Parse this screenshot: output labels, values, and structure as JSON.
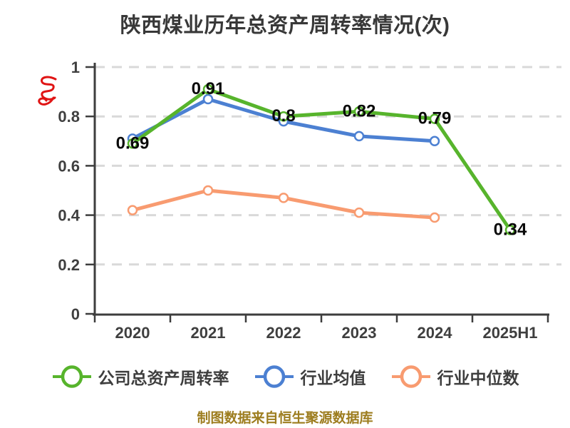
{
  "title": "陕西煤业历年总资产周转率情况(次)",
  "source_note": "制图数据来自恒生聚源数据库",
  "colors": {
    "company": "#57b42c",
    "industry_avg": "#4c80d2",
    "industry_median": "#f89b70",
    "title_text": "#383838",
    "axis_text": "#3f3f3f",
    "data_label": "#0a0a0a",
    "gridline": "#d9d9d9",
    "axis_line": "#3d3d3d",
    "source_note_text": "#9d7d1f",
    "watermark": "#e01414",
    "background": "#ffffff"
  },
  "chart_data": {
    "type": "line",
    "title": "陕西煤业历年总资产周转率情况(次)",
    "categories": [
      "2020",
      "2021",
      "2022",
      "2023",
      "2024",
      "2025H1"
    ],
    "series": [
      {
        "name": "公司总资产周转率",
        "color": "#57b42c",
        "values": [
          0.69,
          0.91,
          0.8,
          0.82,
          0.79,
          0.34
        ],
        "point_labels": [
          "0.69",
          "0.91",
          "0.8",
          "0.82",
          "0.79",
          "0.34"
        ]
      },
      {
        "name": "行业均值",
        "color": "#4c80d2",
        "values": [
          0.71,
          0.87,
          0.78,
          0.72,
          0.7,
          null
        ],
        "point_labels": []
      },
      {
        "name": "行业中位数",
        "color": "#f89b70",
        "values": [
          0.42,
          0.5,
          0.47,
          0.41,
          0.39,
          null
        ],
        "point_labels": []
      }
    ],
    "ylim": [
      0,
      1
    ],
    "yticks": [
      "0",
      "0.2",
      "0.4",
      "0.6",
      "0.8",
      "1"
    ],
    "grid": "horizontal-dashed",
    "legend_position": "bottom"
  },
  "legend": {
    "items": [
      {
        "label": "公司总资产周转率"
      },
      {
        "label": "行业均值"
      },
      {
        "label": "行业中位数"
      }
    ]
  }
}
